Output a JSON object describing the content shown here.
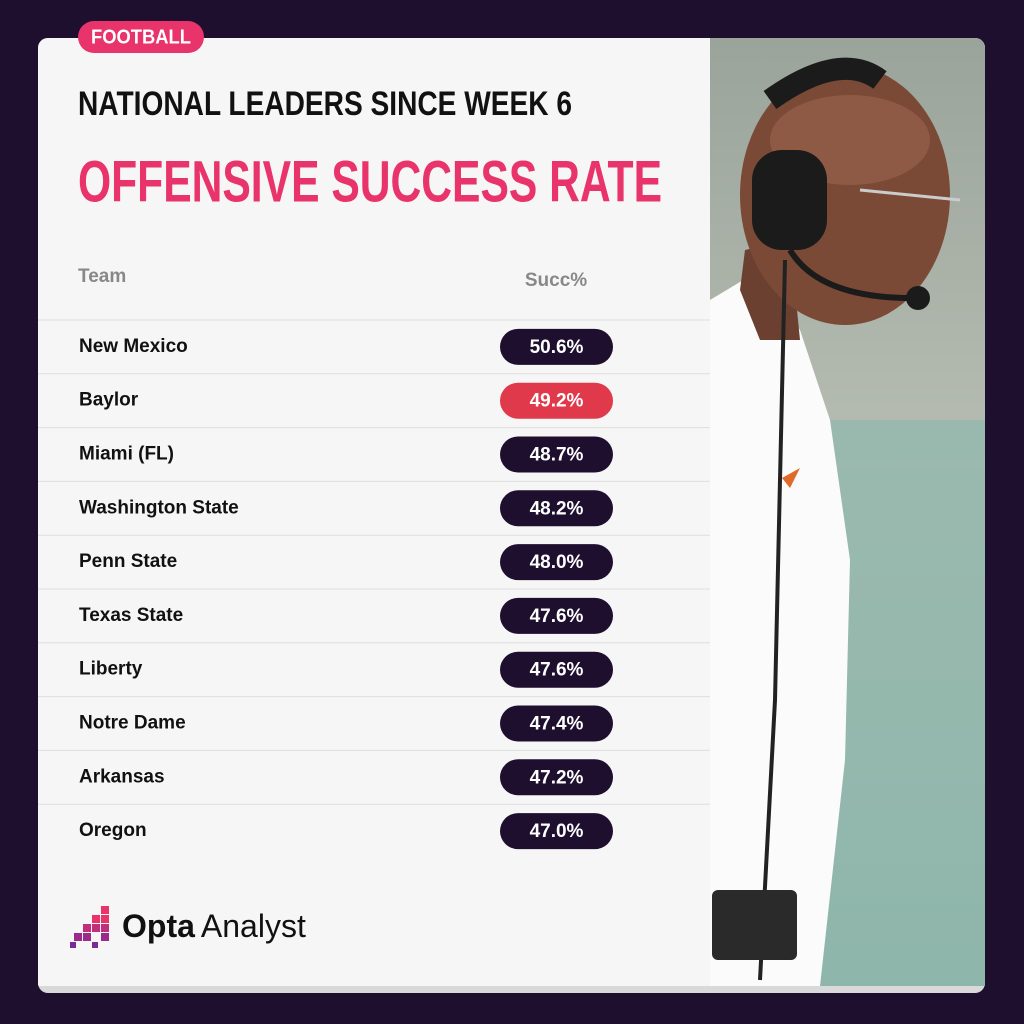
{
  "tag": "FOOTBALL",
  "header": {
    "subtitle": "NATIONAL LEADERS SINCE WEEK 6",
    "title": "OFFENSIVE SUCCESS RATE"
  },
  "table": {
    "columns": [
      "Team",
      "Succ%"
    ],
    "rows": [
      [
        "New Mexico",
        "50.6%"
      ],
      [
        "Baylor",
        "49.2%"
      ],
      [
        "Miami (FL)",
        "48.7%"
      ],
      [
        "Washington State",
        "48.2%"
      ],
      [
        "Penn State",
        "48.0%"
      ],
      [
        "Texas State",
        "47.6%"
      ],
      [
        "Liberty",
        "47.6%"
      ],
      [
        "Notre Dame",
        "47.4%"
      ],
      [
        "Arkansas",
        "47.2%"
      ],
      [
        "Oregon",
        "47.0%"
      ]
    ],
    "badge_colors": [
      "#1e0f2f",
      "#e0394b",
      "#1e0f2f",
      "#1e0f2f",
      "#1e0f2f",
      "#1e0f2f",
      "#1e0f2f",
      "#1e0f2f",
      "#1e0f2f",
      "#1e0f2f"
    ]
  },
  "brand": {
    "bold": "Opta",
    "light": "Analyst"
  }
}
